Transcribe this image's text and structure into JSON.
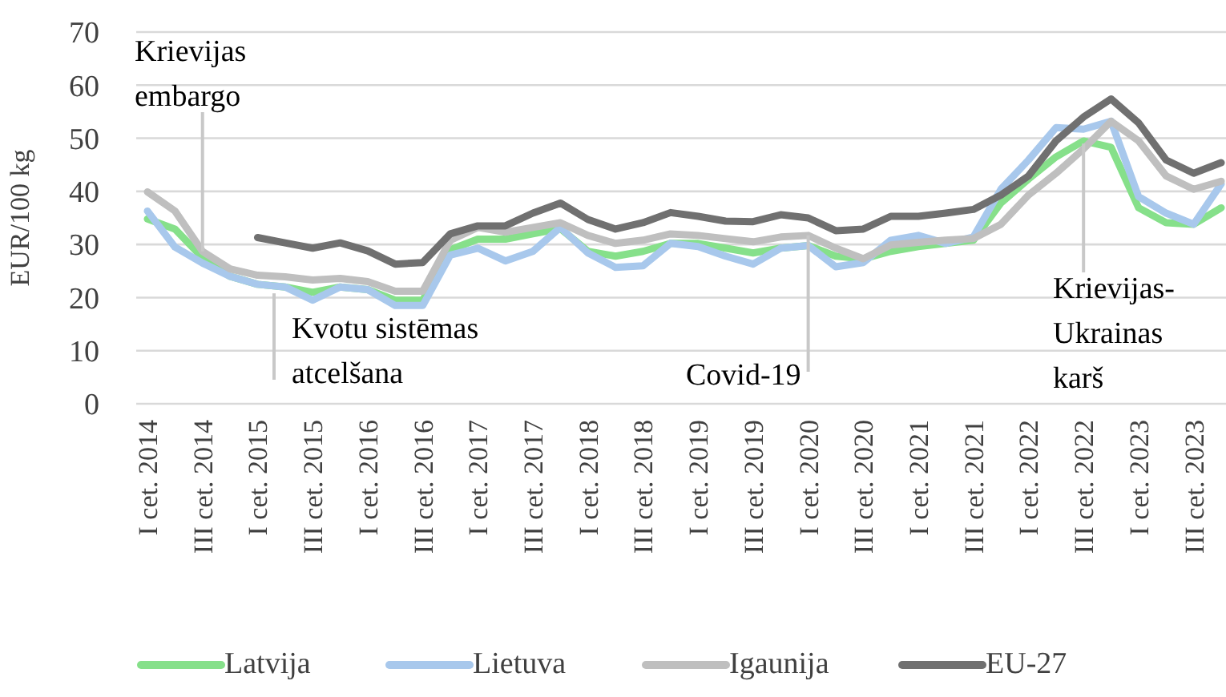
{
  "chart_data": {
    "type": "line",
    "ylabel": "EUR/100 kg",
    "categories": [
      "I cet. 2014",
      null,
      "III cet. 2014",
      null,
      "I cet. 2015",
      null,
      "III cet. 2015",
      null,
      "I cet. 2016",
      null,
      "III cet. 2016",
      null,
      "I cet. 2017",
      null,
      "III cet. 2017",
      null,
      "I cet. 2018",
      null,
      "III cet. 2018",
      null,
      "I cet. 2019",
      null,
      "III cet. 2019",
      null,
      "I cet. 2020",
      null,
      "III cet. 2020",
      null,
      "I cet. 2021",
      null,
      "III cet. 2021",
      null,
      "I cet. 2022",
      null,
      "III cet. 2022",
      null,
      "I cet. 2023",
      null,
      "III cet. 2023",
      null
    ],
    "series": [
      {
        "name": "Latvija",
        "color": "#86e08a",
        "values": [
          34.8,
          32.9,
          27.5,
          24,
          22.5,
          22,
          21,
          22,
          21.5,
          19.5,
          19.5,
          29,
          31,
          31,
          32,
          33,
          28.7,
          27.8,
          28.7,
          30.2,
          30.2,
          29.3,
          28.4,
          29.3,
          29.8,
          27.8,
          27.3,
          28.7,
          29.6,
          30.2,
          30.8,
          37.8,
          42.3,
          46.5,
          49.5,
          48.3,
          36.9,
          34.1,
          33.8,
          36.9
        ]
      },
      {
        "name": "Lietuva",
        "color": "#a8c8ec",
        "values": [
          36.3,
          29.5,
          26.5,
          24,
          22.5,
          22,
          19.5,
          22,
          21.5,
          18.5,
          18.5,
          28,
          29.3,
          26.9,
          28.7,
          33.2,
          28.4,
          25.7,
          26,
          30.2,
          29.6,
          27.8,
          26.3,
          29.3,
          29.8,
          25.8,
          26.6,
          30.8,
          31.7,
          30.2,
          31.4,
          40.4,
          45.9,
          52,
          51.7,
          53.2,
          39,
          35.9,
          33.8,
          41.4
        ]
      },
      {
        "name": "Igaunija",
        "color": "#bfbfbf",
        "values": [
          39.9,
          36.3,
          28.7,
          25.4,
          24.2,
          23.9,
          23.3,
          23.6,
          23,
          21.2,
          21.2,
          30.8,
          33.2,
          32.3,
          33.2,
          34.1,
          31.7,
          30.2,
          30.8,
          32,
          31.7,
          31.1,
          30.5,
          31.4,
          31.7,
          29.3,
          27.3,
          29.9,
          30.4,
          30.8,
          31.1,
          33.8,
          39.3,
          43.4,
          48,
          53.2,
          49.5,
          42.9,
          40.4,
          41.9
        ]
      },
      {
        "name": "EU-27",
        "color": "#707070",
        "values": [
          null,
          null,
          null,
          null,
          31.3,
          30.3,
          29.3,
          30.3,
          28.8,
          26.3,
          26.6,
          32,
          33.5,
          33.5,
          35.9,
          37.8,
          34.7,
          32.9,
          34.1,
          36,
          35.3,
          34.4,
          34.3,
          35.6,
          35,
          32.6,
          32.9,
          35.3,
          35.3,
          35.9,
          36.6,
          39.3,
          42.9,
          49.5,
          54,
          57.4,
          52.9,
          45.9,
          43.4,
          45.4
        ]
      }
    ],
    "ylim": [
      0,
      70
    ],
    "yticks": [
      0,
      10,
      20,
      30,
      40,
      50,
      60,
      70
    ],
    "grid": "y",
    "legend": "bottom",
    "marker": "none",
    "line_style": "solid",
    "annotations": [
      {
        "text": "Krievijas\nembargo",
        "x": "III cet. 2014",
        "y": 28.7
      },
      {
        "text": "Kvotu sistēmas\natcelšana",
        "y": 20.8
      },
      {
        "text": "Covid-19",
        "x": "I cet. 2020",
        "y": 31.7
      },
      {
        "text": "Krievijas-\nUkrainas\nkarš",
        "x": "III cet. 2022",
        "y": 49
      }
    ]
  }
}
